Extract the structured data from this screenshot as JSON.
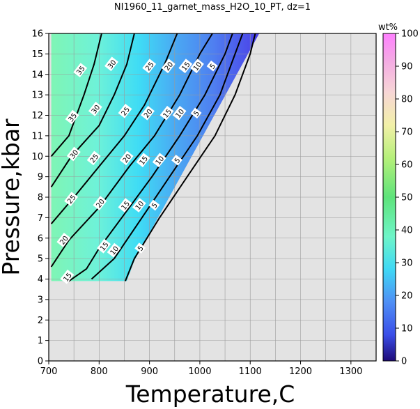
{
  "chart_data": {
    "type": "heatmap",
    "title": "NI1960_11_garnet_mass_H2O_10_PT, dz=1",
    "xlabel": "Temperature,C",
    "ylabel": "Pressure,kbar",
    "xlim": [
      700,
      1350
    ],
    "ylim": [
      0,
      16
    ],
    "x_ticks": [
      "700",
      "800",
      "900",
      "1000",
      "1100",
      "1200",
      "1300"
    ],
    "y_ticks": [
      "0",
      "1",
      "2",
      "3",
      "4",
      "5",
      "6",
      "7",
      "8",
      "9",
      "10",
      "11",
      "12",
      "13",
      "14",
      "15",
      "16"
    ],
    "grid": true,
    "colorbar": {
      "label": "wt%",
      "range": [
        0,
        100
      ],
      "ticks": [
        "0",
        "10",
        "20",
        "30",
        "40",
        "50",
        "60",
        "70",
        "80",
        "90",
        "100"
      ]
    },
    "field_boundary": {
      "bottom_pressure": 3.9,
      "bottom_temperatures": [
        705,
        855
      ],
      "top_temperatures": [
        705,
        1118
      ],
      "top_pressure": 16
    },
    "contours": [
      {
        "level": 5,
        "points": [
          [
            852,
            3.9
          ],
          [
            870,
            5.0
          ],
          [
            920,
            7.0
          ],
          [
            975,
            9.0
          ],
          [
            1030,
            11.0
          ],
          [
            1070,
            13.0
          ],
          [
            1100,
            15.0
          ],
          [
            1110,
            16.0
          ]
        ]
      },
      {
        "level": 10,
        "points": [
          [
            785,
            4.0
          ],
          [
            830,
            5.0
          ],
          [
            885,
            7.0
          ],
          [
            940,
            9.0
          ],
          [
            995,
            11.0
          ],
          [
            1040,
            13.0
          ],
          [
            1070,
            15.0
          ],
          [
            1085,
            16.0
          ]
        ]
      },
      {
        "level": 15,
        "points": [
          [
            740,
            3.9
          ],
          [
            775,
            4.5
          ],
          [
            800,
            5.5
          ],
          [
            860,
            7.5
          ],
          [
            905,
            9.0
          ],
          [
            960,
            11.0
          ],
          [
            1010,
            13.0
          ],
          [
            1050,
            15.0
          ],
          [
            1065,
            16.0
          ]
        ]
      },
      {
        "level": 20,
        "points": [
          [
            705,
            4.6
          ],
          [
            740,
            5.9
          ],
          [
            800,
            7.5
          ],
          [
            860,
            9.5
          ],
          [
            910,
            11.0
          ],
          [
            960,
            13.0
          ],
          [
            1000,
            15.0
          ],
          [
            1025,
            16.0
          ]
        ]
      },
      {
        "level": 25,
        "points": [
          [
            705,
            6.7
          ],
          [
            750,
            8.0
          ],
          [
            800,
            9.5
          ],
          [
            850,
            11.0
          ],
          [
            890,
            12.5
          ],
          [
            930,
            14.5
          ],
          [
            955,
            16.0
          ]
        ]
      },
      {
        "level": 30,
        "points": [
          [
            705,
            8.5
          ],
          [
            745,
            10.0
          ],
          [
            800,
            11.5
          ],
          [
            830,
            13.0
          ],
          [
            855,
            14.5
          ],
          [
            870,
            16.0
          ]
        ]
      },
      {
        "level": 35,
        "points": [
          [
            705,
            10.0
          ],
          [
            740,
            11.0
          ],
          [
            770,
            13.0
          ],
          [
            790,
            14.5
          ],
          [
            805,
            16.0
          ]
        ]
      }
    ],
    "contour_labels": [
      {
        "text": "5",
        "x": 1025,
        "y": 14.4
      },
      {
        "text": "5",
        "x": 993,
        "y": 12.1
      },
      {
        "text": "5",
        "x": 955,
        "y": 9.8
      },
      {
        "text": "5",
        "x": 910,
        "y": 7.6
      },
      {
        "text": "5",
        "x": 882,
        "y": 5.5
      },
      {
        "text": "10",
        "x": 995,
        "y": 14.4
      },
      {
        "text": "10",
        "x": 960,
        "y": 12.1
      },
      {
        "text": "10",
        "x": 920,
        "y": 9.8
      },
      {
        "text": "10",
        "x": 880,
        "y": 7.6
      },
      {
        "text": "10",
        "x": 830,
        "y": 5.4
      },
      {
        "text": "15",
        "x": 972,
        "y": 14.4
      },
      {
        "text": "15",
        "x": 935,
        "y": 12.1
      },
      {
        "text": "15",
        "x": 888,
        "y": 9.8
      },
      {
        "text": "15",
        "x": 852,
        "y": 7.6
      },
      {
        "text": "15",
        "x": 810,
        "y": 5.6
      },
      {
        "text": "15",
        "x": 737,
        "y": 4.1
      },
      {
        "text": "20",
        "x": 938,
        "y": 14.4
      },
      {
        "text": "20",
        "x": 897,
        "y": 12.1
      },
      {
        "text": "20",
        "x": 855,
        "y": 9.9
      },
      {
        "text": "20",
        "x": 802,
        "y": 7.7
      },
      {
        "text": "20",
        "x": 730,
        "y": 5.9
      },
      {
        "text": "25",
        "x": 900,
        "y": 14.4
      },
      {
        "text": "25",
        "x": 852,
        "y": 12.2
      },
      {
        "text": "25",
        "x": 790,
        "y": 9.9
      },
      {
        "text": "25",
        "x": 745,
        "y": 7.9
      },
      {
        "text": "30",
        "x": 825,
        "y": 14.5
      },
      {
        "text": "30",
        "x": 793,
        "y": 12.3
      },
      {
        "text": "30",
        "x": 750,
        "y": 10.1
      },
      {
        "text": "35",
        "x": 763,
        "y": 14.2
      },
      {
        "text": "35",
        "x": 747,
        "y": 11.9
      }
    ]
  }
}
